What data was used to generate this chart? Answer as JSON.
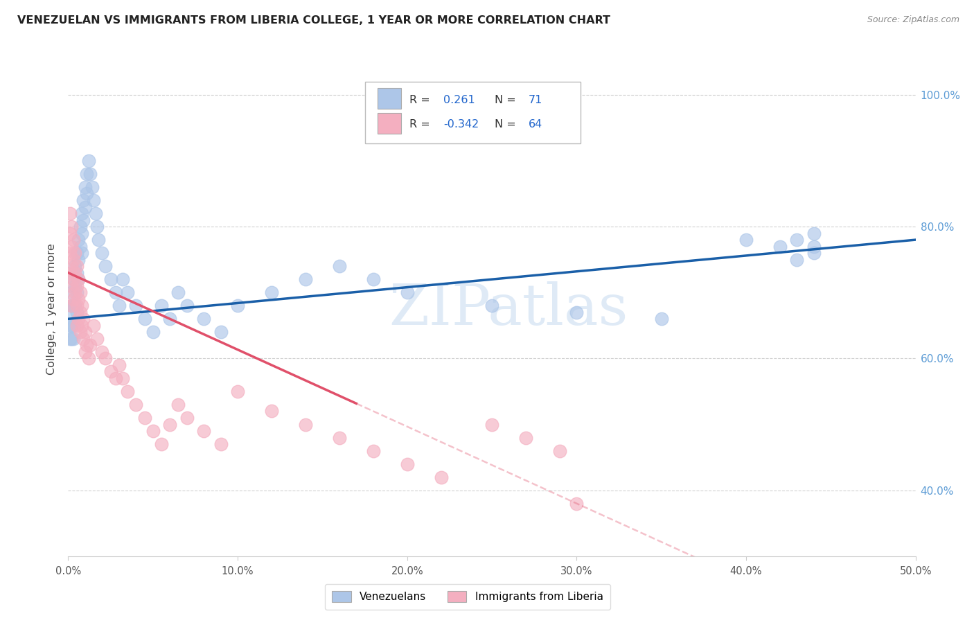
{
  "title": "VENEZUELAN VS IMMIGRANTS FROM LIBERIA COLLEGE, 1 YEAR OR MORE CORRELATION CHART",
  "source": "Source: ZipAtlas.com",
  "ylabel_label": "College, 1 year or more",
  "blue_R": "0.261",
  "blue_N": "71",
  "pink_R": "-0.342",
  "pink_N": "64",
  "blue_color": "#adc6e8",
  "pink_color": "#f4afc0",
  "blue_line_color": "#1a5fa8",
  "pink_line_color": "#e0506a",
  "xlim": [
    0.0,
    0.5
  ],
  "ylim": [
    0.3,
    1.05
  ],
  "blue_x": [
    0.001,
    0.001,
    0.001,
    0.002,
    0.002,
    0.002,
    0.002,
    0.003,
    0.003,
    0.003,
    0.003,
    0.004,
    0.004,
    0.004,
    0.005,
    0.005,
    0.005,
    0.005,
    0.006,
    0.006,
    0.006,
    0.007,
    0.007,
    0.008,
    0.008,
    0.008,
    0.009,
    0.009,
    0.01,
    0.01,
    0.011,
    0.011,
    0.012,
    0.013,
    0.014,
    0.015,
    0.016,
    0.017,
    0.018,
    0.02,
    0.022,
    0.025,
    0.028,
    0.03,
    0.032,
    0.035,
    0.04,
    0.045,
    0.05,
    0.055,
    0.06,
    0.065,
    0.07,
    0.08,
    0.09,
    0.1,
    0.12,
    0.14,
    0.16,
    0.18,
    0.2,
    0.25,
    0.3,
    0.35,
    0.4,
    0.42,
    0.43,
    0.43,
    0.44,
    0.44,
    0.44
  ],
  "blue_y": [
    0.67,
    0.65,
    0.63,
    0.7,
    0.68,
    0.65,
    0.63,
    0.72,
    0.68,
    0.65,
    0.63,
    0.74,
    0.71,
    0.68,
    0.76,
    0.73,
    0.7,
    0.67,
    0.78,
    0.75,
    0.72,
    0.8,
    0.77,
    0.82,
    0.79,
    0.76,
    0.84,
    0.81,
    0.86,
    0.83,
    0.88,
    0.85,
    0.9,
    0.88,
    0.86,
    0.84,
    0.82,
    0.8,
    0.78,
    0.76,
    0.74,
    0.72,
    0.7,
    0.68,
    0.72,
    0.7,
    0.68,
    0.66,
    0.64,
    0.68,
    0.66,
    0.7,
    0.68,
    0.66,
    0.64,
    0.68,
    0.7,
    0.72,
    0.74,
    0.72,
    0.7,
    0.68,
    0.67,
    0.66,
    0.78,
    0.77,
    0.78,
    0.75,
    0.79,
    0.77,
    0.76
  ],
  "pink_x": [
    0.001,
    0.001,
    0.001,
    0.001,
    0.002,
    0.002,
    0.002,
    0.002,
    0.002,
    0.003,
    0.003,
    0.003,
    0.003,
    0.004,
    0.004,
    0.004,
    0.005,
    0.005,
    0.005,
    0.005,
    0.006,
    0.006,
    0.006,
    0.007,
    0.007,
    0.007,
    0.008,
    0.008,
    0.009,
    0.009,
    0.01,
    0.01,
    0.011,
    0.012,
    0.013,
    0.015,
    0.017,
    0.02,
    0.022,
    0.025,
    0.028,
    0.03,
    0.032,
    0.035,
    0.04,
    0.045,
    0.05,
    0.055,
    0.06,
    0.065,
    0.07,
    0.08,
    0.09,
    0.1,
    0.12,
    0.14,
    0.16,
    0.18,
    0.2,
    0.22,
    0.25,
    0.27,
    0.29,
    0.3
  ],
  "pink_y": [
    0.82,
    0.79,
    0.76,
    0.73,
    0.8,
    0.77,
    0.74,
    0.71,
    0.68,
    0.78,
    0.75,
    0.72,
    0.69,
    0.76,
    0.73,
    0.7,
    0.74,
    0.71,
    0.68,
    0.65,
    0.72,
    0.69,
    0.66,
    0.7,
    0.67,
    0.64,
    0.68,
    0.65,
    0.66,
    0.63,
    0.64,
    0.61,
    0.62,
    0.6,
    0.62,
    0.65,
    0.63,
    0.61,
    0.6,
    0.58,
    0.57,
    0.59,
    0.57,
    0.55,
    0.53,
    0.51,
    0.49,
    0.47,
    0.5,
    0.53,
    0.51,
    0.49,
    0.47,
    0.55,
    0.52,
    0.5,
    0.48,
    0.46,
    0.44,
    0.42,
    0.5,
    0.48,
    0.46,
    0.38
  ]
}
